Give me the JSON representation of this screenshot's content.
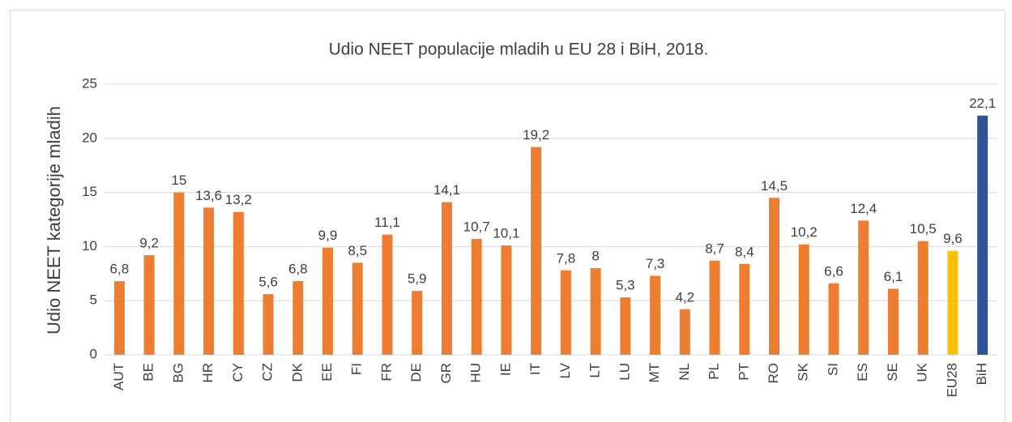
{
  "chart_data": {
    "type": "bar",
    "title": "Udio NEET populacije mladih u EU 28 i BiH, 2018.",
    "y_label": "Udio NEET kategorije mladih",
    "categories": [
      "AUT",
      "BE",
      "BG",
      "HR",
      "CY",
      "CZ",
      "DK",
      "EE",
      "FI",
      "FR",
      "DE",
      "GR",
      "HU",
      "IE",
      "IT",
      "LV",
      "LT",
      "LU",
      "MT",
      "NL",
      "PL",
      "PT",
      "RO",
      "SK",
      "SI",
      "ES",
      "SE",
      "UK",
      "EU28",
      "BiH"
    ],
    "values": [
      6.8,
      9.2,
      15,
      13.6,
      13.2,
      5.6,
      6.8,
      9.9,
      8.5,
      11.1,
      5.9,
      14.1,
      10.7,
      10.1,
      19.2,
      7.8,
      8,
      5.3,
      7.3,
      4.2,
      8.7,
      8.4,
      14.5,
      10.2,
      6.6,
      12.4,
      6.1,
      10.5,
      9.6,
      22.1
    ],
    "value_labels": [
      "6,8",
      "9,2",
      "15",
      "13,6",
      "13,2",
      "5,6",
      "6,8",
      "9,9",
      "8,5",
      "11,1",
      "5,9",
      "14,1",
      "10,7",
      "10,1",
      "19,2",
      "7,8",
      "8",
      "5,3",
      "7,3",
      "4,2",
      "8,7",
      "8,4",
      "14,5",
      "10,2",
      "6,6",
      "12,4",
      "6,1",
      "10,5",
      "9,6",
      "22,1"
    ],
    "colors": [
      "#ed7d31",
      "#ed7d31",
      "#ed7d31",
      "#ed7d31",
      "#ed7d31",
      "#ed7d31",
      "#ed7d31",
      "#ed7d31",
      "#ed7d31",
      "#ed7d31",
      "#ed7d31",
      "#ed7d31",
      "#ed7d31",
      "#ed7d31",
      "#ed7d31",
      "#ed7d31",
      "#ed7d31",
      "#ed7d31",
      "#ed7d31",
      "#ed7d31",
      "#ed7d31",
      "#ed7d31",
      "#ed7d31",
      "#ed7d31",
      "#ed7d31",
      "#ed7d31",
      "#ed7d31",
      "#ed7d31",
      "#ffc000",
      "#2f5597"
    ],
    "ylim": [
      0,
      25
    ],
    "yticks": [
      0,
      5,
      10,
      15,
      20,
      25
    ],
    "grid": true
  }
}
